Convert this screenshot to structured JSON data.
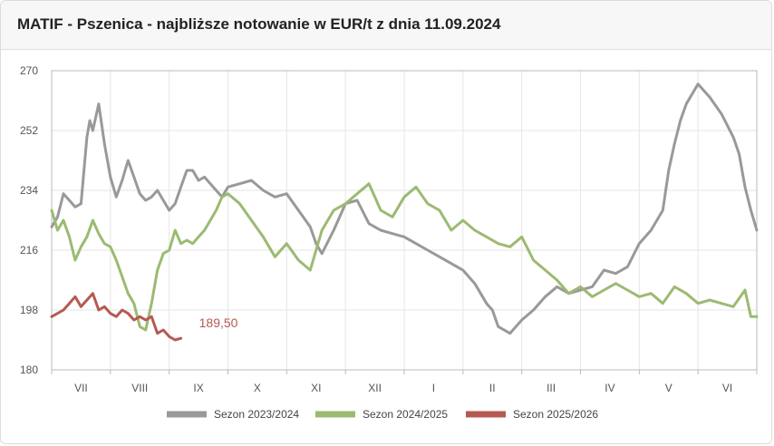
{
  "header": {
    "title": "MATIF - Pszenica - najbliższe notowanie w EUR/t z dnia 11.09.2024"
  },
  "chart_data": {
    "type": "line",
    "title": "MATIF - Pszenica - najbliższe notowanie w EUR/t z dnia 11.09.2024",
    "xlabel": "",
    "ylabel": "",
    "x_ticks": [
      "VII",
      "VIII",
      "IX",
      "X",
      "XI",
      "XII",
      "I",
      "II",
      "III",
      "IV",
      "V",
      "VI"
    ],
    "ylim": [
      180,
      270
    ],
    "y_ticks": [
      "180",
      "198",
      "216",
      "234",
      "252",
      "270"
    ],
    "grid": true,
    "legend_position": "bottom",
    "last_value_label": "189,50",
    "series": [
      {
        "name": "Sezon 2023/2024",
        "color": "#999999",
        "x": [
          0,
          0.1,
          0.2,
          0.3,
          0.4,
          0.5,
          0.6,
          0.65,
          0.7,
          0.8,
          0.9,
          1.0,
          1.1,
          1.2,
          1.3,
          1.4,
          1.5,
          1.6,
          1.7,
          1.8,
          1.9,
          2.0,
          2.1,
          2.2,
          2.3,
          2.4,
          2.5,
          2.6,
          2.7,
          2.8,
          2.9,
          3.0,
          3.2,
          3.4,
          3.6,
          3.8,
          4.0,
          4.2,
          4.4,
          4.5,
          4.6,
          4.8,
          5.0,
          5.2,
          5.4,
          5.6,
          5.8,
          6.0,
          6.2,
          6.4,
          6.6,
          6.8,
          7.0,
          7.2,
          7.4,
          7.5,
          7.6,
          7.8,
          8.0,
          8.2,
          8.4,
          8.6,
          8.8,
          9.0,
          9.2,
          9.4,
          9.6,
          9.8,
          10.0,
          10.2,
          10.4,
          10.5,
          10.6,
          10.7,
          10.8,
          11.0,
          11.2,
          11.4,
          11.6,
          11.7,
          11.8,
          11.9,
          12.0
        ],
        "values": [
          223,
          226,
          233,
          231,
          229,
          230,
          250,
          255,
          252,
          260,
          248,
          238,
          232,
          237,
          243,
          238,
          233,
          231,
          232,
          234,
          231,
          228,
          230,
          235,
          240,
          240,
          237,
          238,
          236,
          234,
          232,
          235,
          236,
          237,
          234,
          232,
          233,
          228,
          223,
          218,
          215,
          222,
          230,
          231,
          224,
          222,
          221,
          220,
          218,
          216,
          214,
          212,
          210,
          206,
          200,
          198,
          193,
          191,
          195,
          198,
          202,
          205,
          203,
          204,
          205,
          210,
          209,
          211,
          218,
          222,
          228,
          240,
          248,
          255,
          260,
          266,
          262,
          257,
          250,
          245,
          235,
          228,
          222
        ]
      },
      {
        "name": "Sezon 2024/2025",
        "color": "#9cba72",
        "x": [
          0,
          0.1,
          0.2,
          0.3,
          0.4,
          0.5,
          0.6,
          0.7,
          0.8,
          0.9,
          1.0,
          1.1,
          1.2,
          1.3,
          1.4,
          1.5,
          1.6,
          1.7,
          1.8,
          1.9,
          2.0,
          2.1,
          2.2,
          2.3,
          2.4,
          2.5,
          2.6,
          2.7,
          2.8,
          2.9,
          3.0,
          3.2,
          3.4,
          3.6,
          3.8,
          4.0,
          4.2,
          4.4,
          4.6,
          4.8,
          5.0,
          5.2,
          5.4,
          5.6,
          5.8,
          6.0,
          6.2,
          6.4,
          6.6,
          6.8,
          7.0,
          7.2,
          7.4,
          7.6,
          7.8,
          8.0,
          8.2,
          8.4,
          8.6,
          8.8,
          9.0,
          9.2,
          9.4,
          9.6,
          9.8,
          10.0,
          10.2,
          10.4,
          10.6,
          10.8,
          11.0,
          11.2,
          11.4,
          11.6,
          11.8,
          11.9,
          12.0
        ],
        "values": [
          228,
          222,
          225,
          220,
          213,
          217,
          220,
          225,
          221,
          218,
          217,
          213,
          208,
          203,
          200,
          193,
          192,
          200,
          210,
          215,
          216,
          222,
          218,
          219,
          218,
          220,
          222,
          225,
          228,
          232,
          233,
          230,
          225,
          220,
          214,
          218,
          213,
          210,
          222,
          228,
          230,
          233,
          236,
          228,
          226,
          232,
          235,
          230,
          228,
          222,
          225,
          222,
          220,
          218,
          217,
          220,
          213,
          210,
          207,
          203,
          205,
          202,
          204,
          206,
          204,
          202,
          203,
          200,
          205,
          203,
          200,
          201,
          200,
          199,
          204,
          196,
          196
        ]
      },
      {
        "name": "Sezon 2025/2026",
        "color": "#b55a52",
        "x": [
          0,
          0.1,
          0.2,
          0.3,
          0.4,
          0.5,
          0.6,
          0.7,
          0.8,
          0.9,
          1.0,
          1.1,
          1.2,
          1.3,
          1.4,
          1.5,
          1.6,
          1.7,
          1.8,
          1.9,
          2.0,
          2.1,
          2.2
        ],
        "values": [
          196,
          197,
          198,
          200,
          202,
          199,
          201,
          203,
          198,
          199,
          197,
          196,
          198,
          197,
          195,
          196,
          195,
          196,
          191,
          192,
          190,
          189,
          189.5
        ]
      }
    ]
  }
}
